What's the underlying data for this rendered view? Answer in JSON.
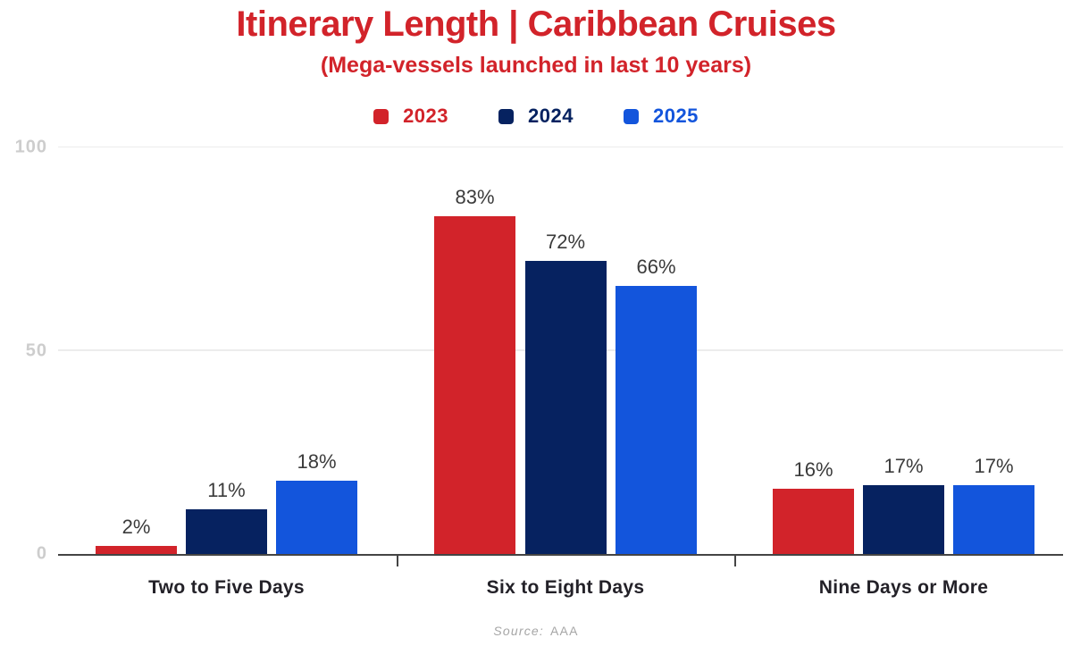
{
  "title": "Itinerary Length | Caribbean Cruises",
  "subtitle": "(Mega-vessels launched in last 10 years)",
  "source_prefix": "Source:",
  "source_value": "AAA",
  "colors": {
    "title_text": "#D2232A",
    "data_label": "#3B3B3B",
    "category_label": "#232128",
    "axis_label": "#CDCDCD",
    "gridline": "#ECECEC",
    "axis_line": "#444444",
    "source_text": "#A6A6A6"
  },
  "chart_data": {
    "type": "bar",
    "title": "Itinerary Length | Caribbean Cruises",
    "subtitle": "(Mega-vessels launched in last 10 years)",
    "categories": [
      "Two to Five Days",
      "Six to Eight Days",
      "Nine Days or More"
    ],
    "series": [
      {
        "name": "2023",
        "color": "#D2232A",
        "values": [
          2,
          83,
          16
        ]
      },
      {
        "name": "2024",
        "color": "#062260",
        "values": [
          11,
          72,
          17
        ]
      },
      {
        "name": "2025",
        "color": "#1355DC",
        "values": [
          18,
          66,
          17
        ]
      }
    ],
    "value_suffix": "%",
    "xlabel": "",
    "ylabel": "",
    "y_ticks": [
      0,
      50,
      100
    ],
    "ylim": [
      0,
      100
    ],
    "grid": "horizontal",
    "legend_position": "top",
    "source": "Source: AAA"
  }
}
